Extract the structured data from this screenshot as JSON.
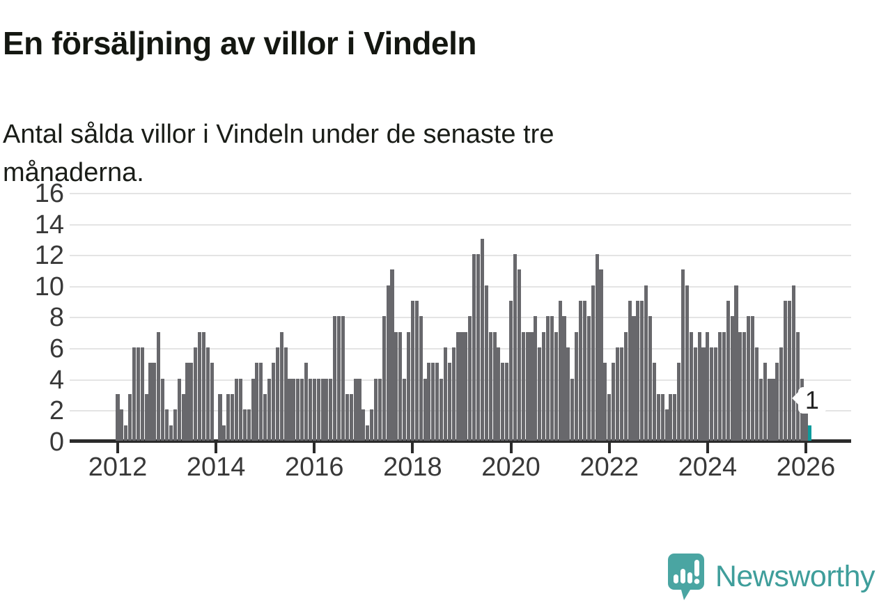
{
  "title": "En försäljning av villor i Vindeln",
  "subtitle": "Antal sålda villor i Vindeln under de senaste tre månaderna.",
  "annotation": {
    "label": "1"
  },
  "logo": {
    "text": "Newsworthy",
    "icon": "newsworthy-speech-bubble-chart-icon"
  },
  "colors": {
    "bar": "#68686c",
    "highlight": "#0d9b9c",
    "grid": "#e4e4e4",
    "axis": "#2b2b2b",
    "tick_text": "#383838",
    "text": "#141711",
    "logo_teal": "#3f9e9b",
    "logo_icon": "#4aa5a2",
    "background": "#ffffff"
  },
  "chart_data": {
    "type": "bar",
    "title": "En försäljning av villor i Vindeln",
    "subtitle": "Antal sålda villor i Vindeln under de senaste tre månaderna.",
    "xlabel": "",
    "ylabel": "",
    "ylim": [
      0,
      16
    ],
    "yticks": [
      0,
      2,
      4,
      6,
      8,
      10,
      12,
      14,
      16
    ],
    "xticks": [
      "2012",
      "2014",
      "2016",
      "2018",
      "2020",
      "2022",
      "2024",
      "2026"
    ],
    "frequency": "monthly",
    "x_start": "2012-01",
    "x_end": "2026-02",
    "grid": "horizontal",
    "legend": "none",
    "highlight_last": true,
    "last_value_label": "1",
    "values": [
      3,
      2,
      1,
      3,
      6,
      6,
      6,
      3,
      5,
      5,
      7,
      4,
      2,
      1,
      2,
      4,
      3,
      5,
      5,
      6,
      7,
      7,
      6,
      5,
      0,
      3,
      1,
      3,
      3,
      4,
      4,
      2,
      2,
      4,
      5,
      5,
      3,
      4,
      5,
      6,
      7,
      6,
      4,
      4,
      4,
      4,
      5,
      4,
      4,
      4,
      4,
      4,
      4,
      8,
      8,
      8,
      3,
      3,
      4,
      4,
      2,
      1,
      2,
      4,
      4,
      8,
      10,
      11,
      7,
      7,
      4,
      7,
      9,
      9,
      8,
      4,
      5,
      5,
      5,
      4,
      6,
      5,
      6,
      7,
      7,
      7,
      8,
      12,
      12,
      13,
      10,
      7,
      7,
      6,
      5,
      5,
      9,
      12,
      11,
      7,
      7,
      7,
      8,
      6,
      7,
      8,
      8,
      7,
      9,
      8,
      6,
      4,
      7,
      9,
      9,
      8,
      10,
      12,
      11,
      5,
      3,
      5,
      6,
      6,
      7,
      9,
      8,
      9,
      9,
      10,
      8,
      5,
      3,
      3,
      2,
      3,
      3,
      5,
      11,
      10,
      7,
      6,
      7,
      6,
      7,
      6,
      6,
      7,
      7,
      9,
      8,
      10,
      7,
      7,
      8,
      8,
      6,
      4,
      5,
      4,
      4,
      5,
      6,
      9,
      9,
      10,
      7,
      4,
      2,
      1
    ]
  }
}
